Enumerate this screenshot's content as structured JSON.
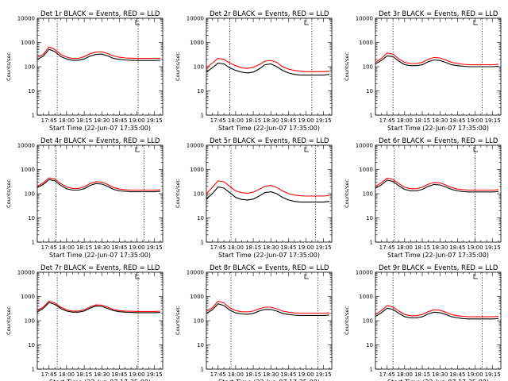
{
  "chart_data": {
    "type": "line",
    "y_scale": "log",
    "ylim": [
      1,
      10000
    ],
    "yticks": [
      1,
      10,
      100,
      1000,
      10000
    ],
    "ytick_labels": [
      "1",
      "10",
      "100",
      "1000",
      "10000"
    ],
    "xlim": [
      "17:35",
      "19:22"
    ],
    "xticks": [
      "17:45",
      "18:00",
      "18:15",
      "18:30",
      "18:45",
      "19:00",
      "19:15"
    ],
    "ylabel": "Counts/sec",
    "xlabel": "Start Time (22-Jun-07 17:35:00)",
    "x": [
      "17:35",
      "17:40",
      "17:45",
      "17:50",
      "17:55",
      "18:00",
      "18:05",
      "18:10",
      "18:15",
      "18:20",
      "18:25",
      "18:30",
      "18:35",
      "18:40",
      "18:45",
      "18:50",
      "18:55",
      "19:00",
      "19:05",
      "19:10",
      "19:15",
      "19:20"
    ],
    "colors": {
      "events": "#000000",
      "lld": "#ff0000"
    },
    "panels": [
      {
        "title": "Det 1r BLACK = Events, RED = LLD",
        "vlines": [
          "17:52",
          "19:01"
        ],
        "series": [
          {
            "values": [
              200,
              270,
              520,
              420,
              260,
              210,
              185,
              185,
              210,
              270,
              320,
              330,
              280,
              220,
              200,
              190,
              185,
              180,
              180,
              180,
              180,
              185
            ]
          },
          {
            "values": [
              240,
              320,
              650,
              520,
              320,
              250,
              220,
              220,
              260,
              340,
              400,
              410,
              350,
              280,
              245,
              230,
              225,
              220,
              220,
              220,
              220,
              225
            ]
          }
        ]
      },
      {
        "title": "Det 2r BLACK = Events, RED = LLD",
        "vlines": [
          "17:55",
          "19:05"
        ],
        "series": [
          {
            "values": [
              60,
              90,
              140,
              130,
              90,
              70,
              60,
              55,
              60,
              80,
              120,
              130,
              100,
              70,
              55,
              48,
              45,
              45,
              45,
              45,
              45,
              48
            ]
          },
          {
            "values": [
              90,
              140,
              220,
              200,
              140,
              110,
              90,
              85,
              95,
              120,
              170,
              180,
              150,
              100,
              80,
              70,
              65,
              62,
              62,
              62,
              62,
              65
            ]
          }
        ]
      },
      {
        "title": "Det 3r BLACK = Events, RED = LLD",
        "vlines": [
          "17:50",
          "19:06"
        ],
        "series": [
          {
            "values": [
              130,
              180,
              280,
              260,
              170,
              120,
              110,
              110,
              120,
              160,
              190,
              180,
              150,
              120,
              110,
              105,
              100,
              100,
              100,
              100,
              100,
              105
            ]
          },
          {
            "values": [
              150,
              220,
              370,
              330,
              210,
              150,
              135,
              135,
              150,
              200,
              240,
              230,
              190,
              150,
              135,
              125,
              120,
              120,
              120,
              120,
              120,
              125
            ]
          }
        ]
      },
      {
        "title": "Det 4r BLACK = Events, RED = LLD",
        "vlines": [
          "17:51",
          "19:06"
        ],
        "series": [
          {
            "values": [
              180,
              240,
              380,
              340,
              220,
              160,
              140,
              140,
              160,
              220,
              260,
              250,
              200,
              150,
              130,
              125,
              120,
              120,
              120,
              120,
              120,
              125
            ]
          },
          {
            "values": [
              200,
              280,
              450,
              400,
              260,
              190,
              165,
              165,
              190,
              260,
              310,
              300,
              240,
              180,
              155,
              145,
              140,
              140,
              140,
              140,
              140,
              145
            ]
          }
        ]
      },
      {
        "title": "Det 5r BLACK = Events, RED = LLD",
        "vlines": [
          "17:56",
          "19:08"
        ],
        "series": [
          {
            "values": [
              60,
              100,
              190,
              170,
              110,
              70,
              58,
              55,
              60,
              80,
              110,
              120,
              100,
              70,
              55,
              48,
              45,
              45,
              45,
              45,
              45,
              48
            ]
          },
          {
            "values": [
              100,
              180,
              340,
              310,
              200,
              130,
              110,
              105,
              115,
              150,
              200,
              220,
              180,
              130,
              100,
              88,
              82,
              80,
              80,
              80,
              80,
              85
            ]
          }
        ]
      },
      {
        "title": "Det 6r BLACK = Events, RED = LLD",
        "vlines": [
          "17:51",
          "19:00"
        ],
        "series": [
          {
            "values": [
              170,
              230,
              360,
              320,
              210,
              150,
              130,
              130,
              150,
              200,
              240,
              230,
              190,
              150,
              130,
              122,
              118,
              118,
              118,
              118,
              118,
              122
            ]
          },
          {
            "values": [
              200,
              280,
              440,
              390,
              260,
              185,
              160,
              160,
              185,
              245,
              290,
              280,
              230,
              180,
              155,
              145,
              140,
              140,
              140,
              140,
              140,
              145
            ]
          }
        ]
      },
      {
        "title": "Det 7r BLACK = Events, RED = LLD",
        "vlines": [
          "17:52",
          "19:01"
        ],
        "series": [
          {
            "values": [
              230,
              320,
              560,
              470,
              320,
              250,
              225,
              225,
              250,
              330,
              400,
              390,
              320,
              260,
              235,
              225,
              220,
              215,
              215,
              215,
              215,
              220
            ]
          },
          {
            "values": [
              260,
              360,
              640,
              540,
              360,
              280,
              250,
              250,
              280,
              370,
              450,
              440,
              360,
              290,
              260,
              250,
              245,
              240,
              240,
              240,
              240,
              245
            ]
          }
        ]
      },
      {
        "title": "Det 8r BLACK = Events, RED = LLD",
        "vlines": [
          "17:56",
          "19:10"
        ],
        "series": [
          {
            "values": [
              200,
              280,
              500,
              420,
              270,
              210,
              190,
              185,
              200,
              250,
              290,
              290,
              250,
              200,
              180,
              170,
              165,
              165,
              165,
              165,
              165,
              170
            ]
          },
          {
            "values": [
              240,
              340,
              640,
              540,
              340,
              260,
              235,
              230,
              250,
              310,
              360,
              360,
              310,
              250,
              225,
              210,
              205,
              205,
              205,
              205,
              205,
              210
            ]
          }
        ]
      },
      {
        "title": "Det 9r BLACK = Events, RED = LLD",
        "vlines": [
          "17:50",
          "19:06"
        ],
        "series": [
          {
            "values": [
              150,
              210,
              330,
              290,
              200,
              145,
              130,
              130,
              145,
              190,
              225,
              215,
              180,
              145,
              130,
              122,
              118,
              118,
              118,
              118,
              118,
              122
            ]
          },
          {
            "values": [
              180,
              260,
              420,
              370,
              250,
              180,
              160,
              160,
              180,
              235,
              280,
              270,
              225,
              180,
              160,
              150,
              145,
              145,
              145,
              145,
              145,
              150
            ]
          }
        ]
      }
    ]
  }
}
